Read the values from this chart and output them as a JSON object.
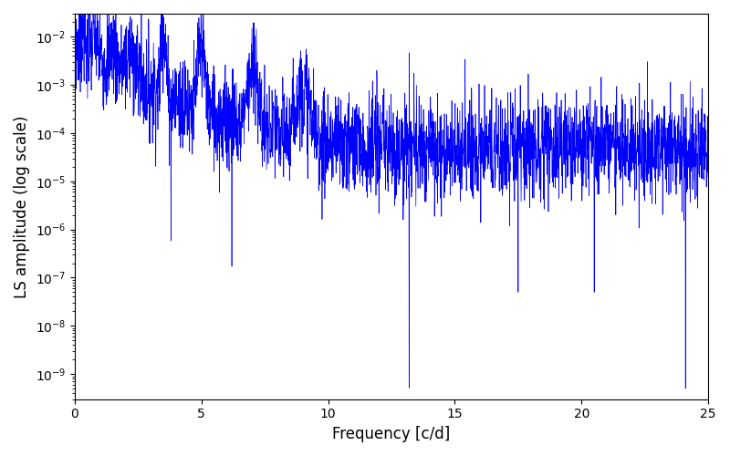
{
  "title": "",
  "xlabel": "Frequency [c/d]",
  "ylabel": "LS amplitude (log scale)",
  "xlim": [
    0,
    25
  ],
  "ylim_log": [
    3e-10,
    0.03
  ],
  "line_color": "#0000ff",
  "line_width": 0.5,
  "figsize": [
    8.0,
    5.0
  ],
  "dpi": 100,
  "freq_max": 25.0,
  "n_points": 3000,
  "seed": 7,
  "background_color": "#ffffff"
}
